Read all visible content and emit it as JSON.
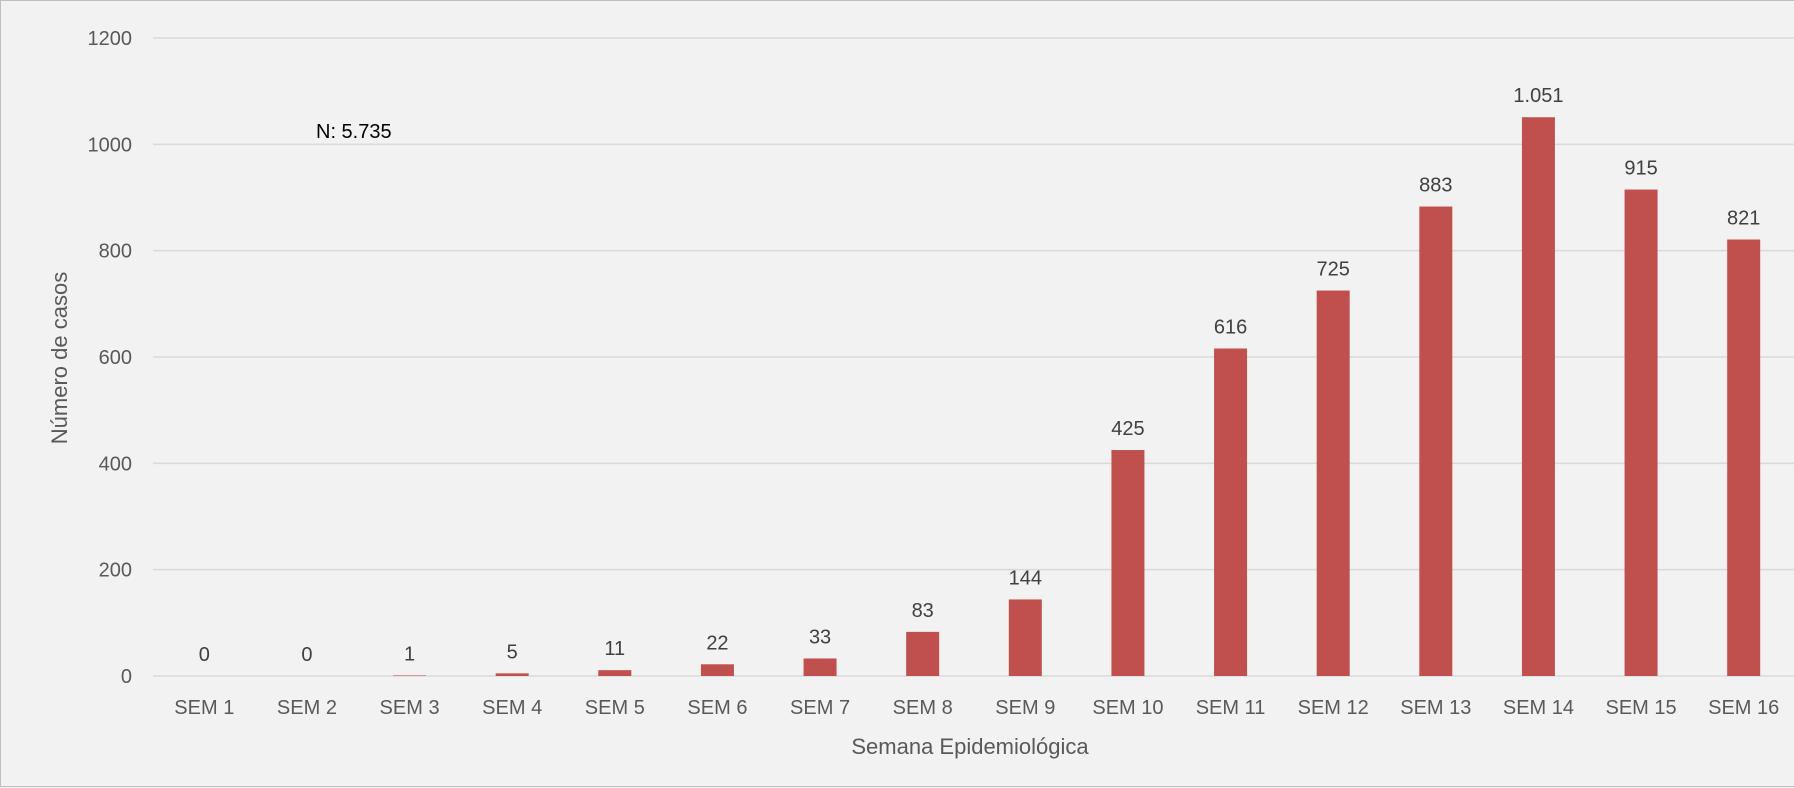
{
  "chart_data": {
    "type": "bar",
    "title": "",
    "xlabel": "Semana Epidemiológica",
    "ylabel": "Número de casos",
    "annotation": "N: 5.735",
    "ylim": [
      0,
      1200
    ],
    "yticks": [
      "0",
      "200",
      "400",
      "600",
      "800",
      "1000",
      "1200"
    ],
    "grid": true,
    "legend": "none",
    "bar_color": "#c0504d",
    "categories": [
      "SEM 1",
      "SEM 2",
      "SEM 3",
      "SEM 4",
      "SEM 5",
      "SEM 6",
      "SEM 7",
      "SEM 8",
      "SEM 9",
      "SEM 10",
      "SEM 11",
      "SEM 12",
      "SEM 13",
      "SEM 14",
      "SEM 15",
      "SEM 16"
    ],
    "values": [
      0,
      0,
      1,
      5,
      11,
      22,
      33,
      83,
      144,
      425,
      616,
      725,
      883,
      1051,
      915,
      821
    ],
    "value_labels": [
      "0",
      "0",
      "1",
      "5",
      "11",
      "22",
      "33",
      "83",
      "144",
      "425",
      "616",
      "725",
      "883",
      "1.051",
      "915",
      "821"
    ]
  }
}
